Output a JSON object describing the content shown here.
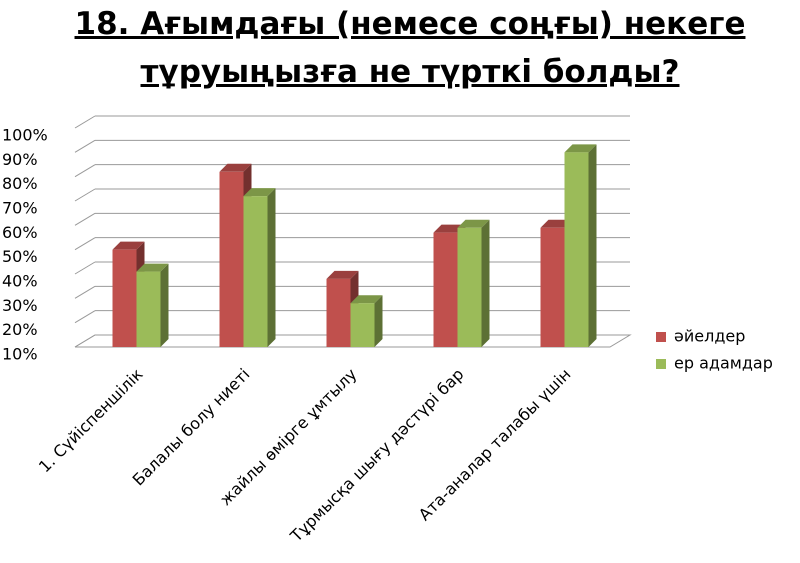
{
  "chart_data": {
    "type": "bar3d",
    "title": "18. Ағымдағы (немесе соңғы) некеге тұруыңызға не түрткі болды?",
    "categories": [
      "1. Сүйіспеншілік",
      "Балалы болу ниеті",
      "жайлы өмірге ұмтылу",
      "Тұрмысқа шығу дәстүрі бар",
      "Ата-аналар талабы үшін"
    ],
    "series": [
      {
        "name": "әйелдер",
        "color": "#c0504d",
        "values": [
          50,
          82,
          38,
          57,
          59
        ]
      },
      {
        "name": "ер адамдар",
        "color": "#9bbb59",
        "values": [
          41,
          72,
          28,
          59,
          90
        ]
      }
    ],
    "ylim": [
      10,
      100
    ],
    "yticks": [
      {
        "value": 10,
        "label": "10%"
      },
      {
        "value": 20,
        "label": "20%"
      },
      {
        "value": 30,
        "label": "30%"
      },
      {
        "value": 40,
        "label": "40%"
      },
      {
        "value": 50,
        "label": "50%"
      },
      {
        "value": 60,
        "label": "60%"
      },
      {
        "value": 70,
        "label": "70%"
      },
      {
        "value": 80,
        "label": "80%"
      },
      {
        "value": 90,
        "label": "90%"
      },
      {
        "value": 100,
        "label": "100%"
      }
    ],
    "grid": true,
    "legend": "right"
  }
}
